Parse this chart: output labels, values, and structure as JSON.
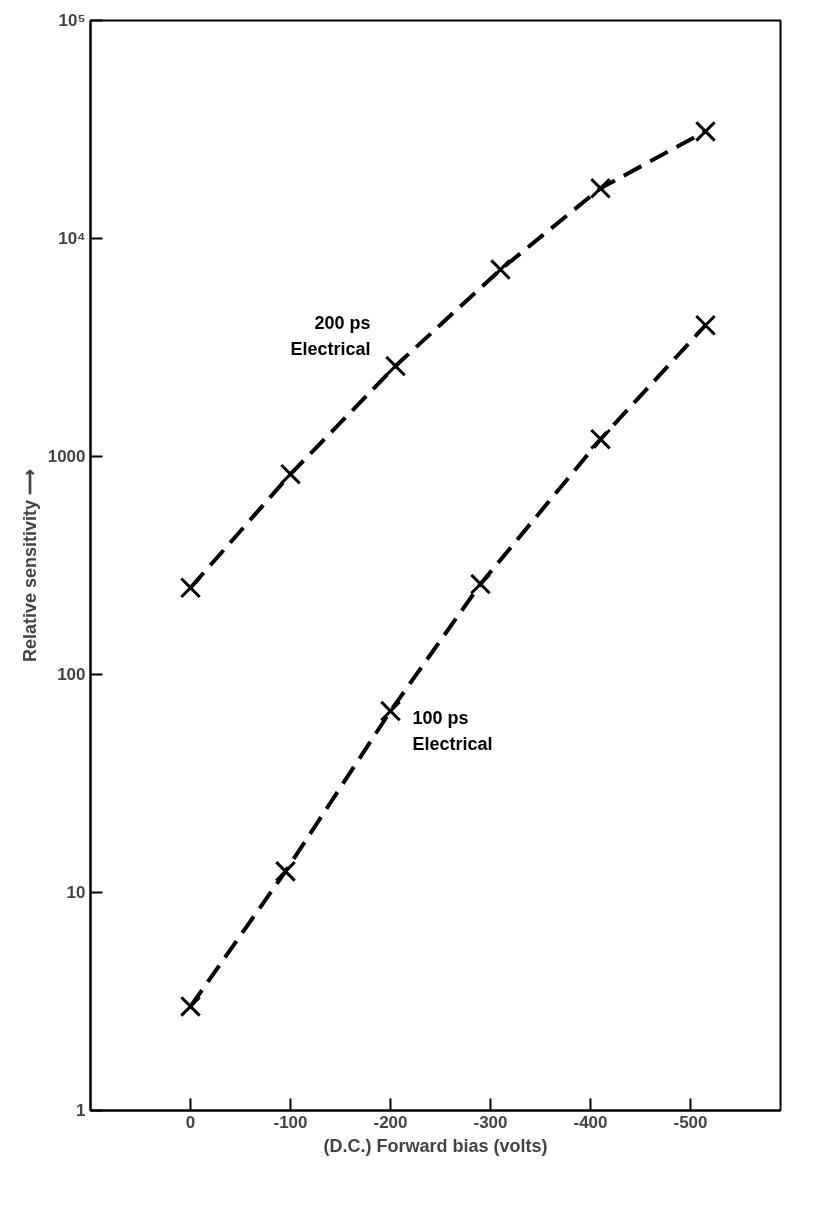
{
  "chart_data": {
    "type": "line",
    "xlabel": "(D.C.) Forward bias (volts)",
    "ylabel": "Relative sensitivity ⟶",
    "log": "y",
    "xlim": [
      100,
      -590
    ],
    "ylim": [
      1,
      100000
    ],
    "xticks": [
      0,
      -100,
      -200,
      -300,
      -400,
      -500
    ],
    "yticks": [
      1,
      10,
      100,
      1000,
      {
        "value": 10000,
        "label": "10⁴"
      },
      {
        "value": 100000,
        "label": "10⁵"
      }
    ],
    "marker": "cross",
    "line_style": "dashed",
    "grid": false,
    "series": [
      {
        "name": "200 ps\nElectrical",
        "color": "#000000",
        "x": [
          0,
          -100,
          -205,
          -310,
          -410,
          -515
        ],
        "values": [
          250,
          830,
          2600,
          7200,
          17000,
          31000
        ]
      },
      {
        "name": "100 ps\nElectrical",
        "color": "#000000",
        "x": [
          0,
          -95,
          -200,
          -290,
          -410,
          -515
        ],
        "values": [
          3,
          12.5,
          68,
          260,
          1200,
          4000
        ]
      }
    ]
  }
}
